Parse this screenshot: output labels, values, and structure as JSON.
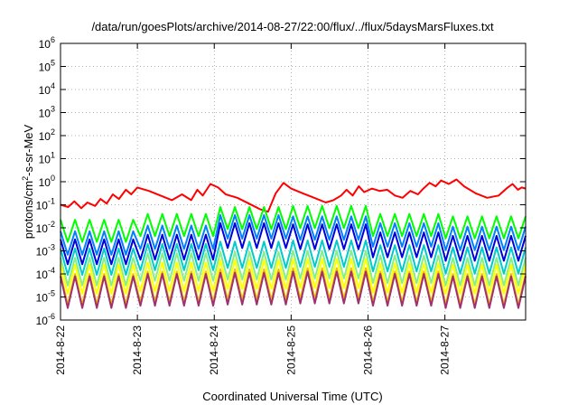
{
  "chart_data": {
    "type": "line",
    "title": "/data/run/goesPlots/archive/2014-08-27/22:00/flux/../flux/5daysMarsFluxes.txt",
    "xlabel": "Coordinated Universal Time (UTC)",
    "ylabel_parts": [
      "protons/cm",
      "2",
      "-s-sr-MeV"
    ],
    "y_scale": "log",
    "ylim_exp": [
      -6,
      6
    ],
    "yticks": [
      {
        "base": "10",
        "exp": "-6",
        "value": -6
      },
      {
        "base": "10",
        "exp": "-5",
        "value": -5
      },
      {
        "base": "10",
        "exp": "-4",
        "value": -4
      },
      {
        "base": "10",
        "exp": "-3",
        "value": -3
      },
      {
        "base": "10",
        "exp": "-2",
        "value": -2
      },
      {
        "base": "10",
        "exp": "-1",
        "value": -1
      },
      {
        "base": "10",
        "exp": "0",
        "value": 0
      },
      {
        "base": "10",
        "exp": "1",
        "value": 1
      },
      {
        "base": "10",
        "exp": "2",
        "value": 2
      },
      {
        "base": "10",
        "exp": "3",
        "value": 3
      },
      {
        "base": "10",
        "exp": "4",
        "value": 4
      },
      {
        "base": "10",
        "exp": "5",
        "value": 5
      },
      {
        "base": "10",
        "exp": "6",
        "value": 6
      }
    ],
    "xlim_days": [
      0,
      6.05
    ],
    "xticks": [
      {
        "label": "2014-8-22",
        "day": 0
      },
      {
        "label": "2014-8-23",
        "day": 1
      },
      {
        "label": "2014-8-24",
        "day": 2
      },
      {
        "label": "2014-8-25",
        "day": 3
      },
      {
        "label": "2014-8-26",
        "day": 4
      },
      {
        "label": "2014-8-27",
        "day": 5
      }
    ],
    "grid": true,
    "series": [
      {
        "color": "#ff0000",
        "points": [
          [
            0,
            -1.0
          ],
          [
            0.1,
            -1.1
          ],
          [
            0.18,
            -0.85
          ],
          [
            0.27,
            -1.15
          ],
          [
            0.35,
            -0.9
          ],
          [
            0.45,
            -1.05
          ],
          [
            0.52,
            -0.75
          ],
          [
            0.6,
            -0.95
          ],
          [
            0.68,
            -0.55
          ],
          [
            0.76,
            -0.75
          ],
          [
            0.85,
            -0.35
          ],
          [
            0.92,
            -0.55
          ],
          [
            1.0,
            -0.25
          ],
          [
            1.15,
            -0.4
          ],
          [
            1.3,
            -0.6
          ],
          [
            1.45,
            -0.8
          ],
          [
            1.58,
            -0.55
          ],
          [
            1.7,
            -0.8
          ],
          [
            1.78,
            -0.35
          ],
          [
            1.85,
            -0.6
          ],
          [
            1.95,
            -0.1
          ],
          [
            2.05,
            -0.25
          ],
          [
            2.15,
            -0.55
          ],
          [
            2.3,
            -0.7
          ],
          [
            2.45,
            -0.95
          ],
          [
            2.6,
            -1.2
          ],
          [
            2.7,
            -1.3
          ],
          [
            2.8,
            -0.5
          ],
          [
            2.9,
            -0.05
          ],
          [
            3.0,
            -0.3
          ],
          [
            3.15,
            -0.5
          ],
          [
            3.3,
            -0.7
          ],
          [
            3.45,
            -0.9
          ],
          [
            3.55,
            -0.8
          ],
          [
            3.65,
            -0.6
          ],
          [
            3.72,
            -0.35
          ],
          [
            3.8,
            -0.6
          ],
          [
            3.88,
            -0.2
          ],
          [
            3.95,
            -0.45
          ],
          [
            4.05,
            -0.3
          ],
          [
            4.15,
            -0.4
          ],
          [
            4.25,
            -0.35
          ],
          [
            4.35,
            -0.6
          ],
          [
            4.45,
            -0.7
          ],
          [
            4.55,
            -0.4
          ],
          [
            4.65,
            -0.55
          ],
          [
            4.72,
            -0.3
          ],
          [
            4.8,
            -0.05
          ],
          [
            4.88,
            -0.2
          ],
          [
            4.95,
            0.05
          ],
          [
            5.05,
            -0.1
          ],
          [
            5.15,
            0.1
          ],
          [
            5.25,
            -0.2
          ],
          [
            5.4,
            -0.5
          ],
          [
            5.55,
            -0.7
          ],
          [
            5.7,
            -0.6
          ],
          [
            5.8,
            -0.3
          ],
          [
            5.88,
            -0.1
          ],
          [
            5.95,
            -0.35
          ],
          [
            6.0,
            -0.25
          ],
          [
            6.05,
            -0.3
          ]
        ]
      },
      {
        "color": "#00ff00",
        "sawtooth": true,
        "peaks": [
          -1.65,
          -1.4,
          -1.1,
          -1.05,
          -1.4,
          -1.5
        ]
      },
      {
        "color": "#0080ff",
        "sawtooth": true,
        "peaks": [
          -2.15,
          -1.9,
          -1.45,
          -1.5,
          -1.8,
          -1.95
        ]
      },
      {
        "color": "#0000dd",
        "sawtooth": true,
        "peaks": [
          -2.5,
          -2.3,
          -1.8,
          -1.85,
          -2.2,
          -2.35
        ]
      },
      {
        "color": "#00cccc",
        "sawtooth": true,
        "peaks": [
          -2.9,
          -2.7,
          -2.6,
          -2.55,
          -2.75,
          -2.85
        ]
      },
      {
        "color": "#88ee88",
        "sawtooth": true,
        "peaks": [
          -3.3,
          -3.1,
          -3.05,
          -3.0,
          -3.2,
          -3.3
        ]
      },
      {
        "color": "#ffff00",
        "sawtooth": true,
        "peaks": [
          -3.6,
          -3.5,
          -3.4,
          -3.35,
          -3.55,
          -3.6
        ]
      },
      {
        "color": "#f0c000",
        "sawtooth": true,
        "peaks": [
          -4.0,
          -3.9,
          -3.8,
          -3.75,
          -3.9,
          -4.0
        ]
      },
      {
        "color": "#a03070",
        "sawtooth": true,
        "peaks": [
          -4.1,
          -4.0,
          -3.95,
          -3.9,
          -4.0,
          -4.1
        ]
      }
    ]
  }
}
